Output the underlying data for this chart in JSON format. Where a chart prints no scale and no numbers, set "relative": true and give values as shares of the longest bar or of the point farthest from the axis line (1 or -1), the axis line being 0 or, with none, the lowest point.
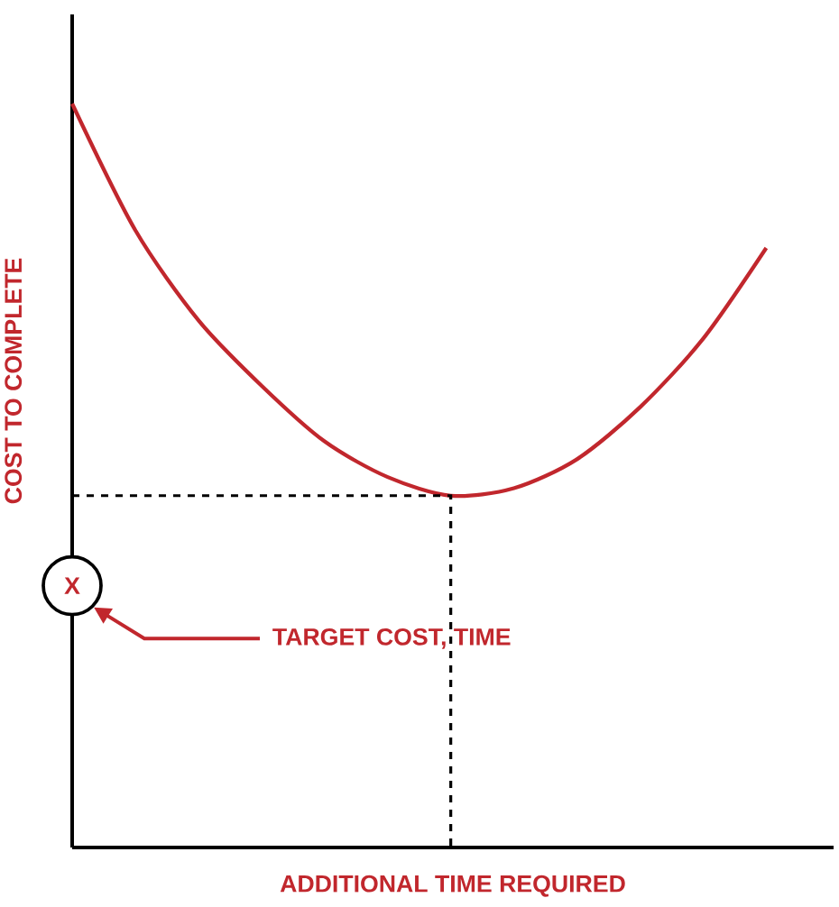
{
  "chart_data": {
    "type": "line",
    "relative": true,
    "color": "#c1272d",
    "xlabel": "ADDITIONAL TIME REQUIRED",
    "ylabel": "COST TO COMPLETE",
    "marker": "none",
    "line_style": "solid",
    "categories": [
      null,
      null,
      null,
      null,
      null,
      null,
      null,
      null,
      null,
      null,
      null,
      null
    ],
    "values": [
      1.0,
      0.83,
      0.709,
      0.621,
      0.546,
      0.498,
      0.473,
      0.483,
      0.522,
      0.592,
      0.684,
      0.806
    ],
    "ref_lines": [
      {
        "axis": "y",
        "value": 0.473,
        "line_style": "dashed",
        "color": "#000000"
      }
    ],
    "annotations": [
      {
        "text": "X",
        "y": 0.352
      },
      "TARGET COST, TIME"
    ]
  }
}
